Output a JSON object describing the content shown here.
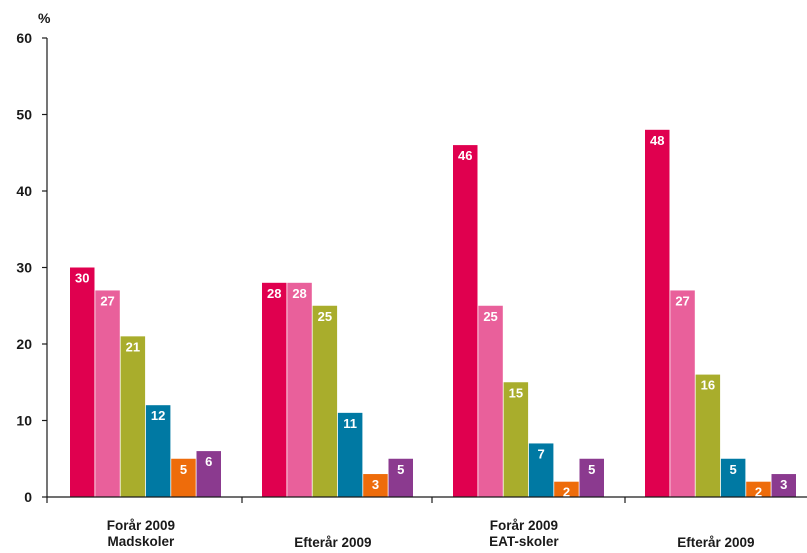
{
  "chart_data": {
    "type": "bar",
    "title": "",
    "xlabel": "",
    "ylabel": "%",
    "ylim": [
      0,
      60
    ],
    "yticks": [
      0,
      10,
      20,
      30,
      40,
      50,
      60
    ],
    "grid": false,
    "categories": [
      [
        "Forår 2009",
        "Madskoler"
      ],
      [
        "Efterår 2009"
      ],
      [
        "Forår 2009",
        "EAT-skoler"
      ],
      [
        "Efterår 2009"
      ]
    ],
    "series": [
      {
        "color": "#e0004f",
        "values": [
          30,
          28,
          46,
          48
        ]
      },
      {
        "color": "#e9609b",
        "values": [
          27,
          28,
          25,
          27
        ]
      },
      {
        "color": "#a9ad2c",
        "values": [
          21,
          25,
          15,
          16
        ]
      },
      {
        "color": "#0079a3",
        "values": [
          12,
          11,
          7,
          5
        ]
      },
      {
        "color": "#ee6c0b",
        "values": [
          5,
          3,
          2,
          2
        ]
      },
      {
        "color": "#8b3a8f",
        "values": [
          6,
          5,
          5,
          3
        ]
      }
    ],
    "value_labels": [
      [
        "30",
        "28",
        "46",
        "48"
      ],
      [
        "27",
        "28",
        "25",
        "27"
      ],
      [
        "21",
        "25",
        "15",
        "16"
      ],
      [
        "12",
        "11",
        "7",
        "5"
      ],
      [
        "5",
        "3",
        "2",
        "2"
      ],
      [
        "6",
        "5",
        "5",
        "3"
      ]
    ]
  }
}
